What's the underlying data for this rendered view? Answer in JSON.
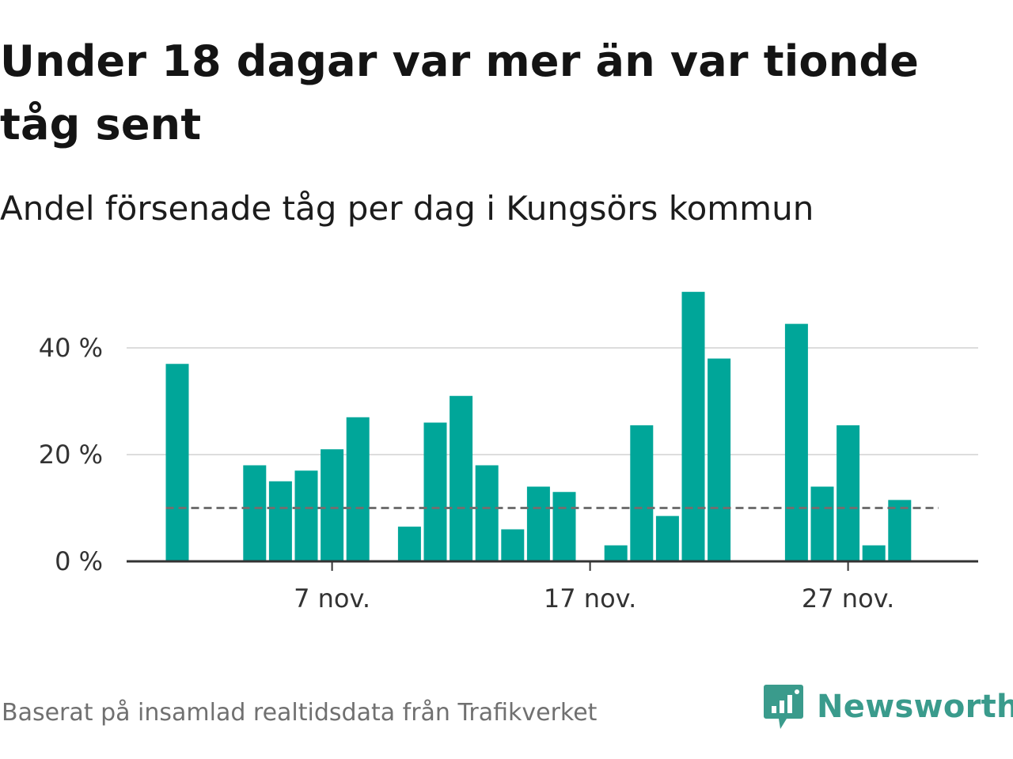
{
  "title": "Under 18 dagar var mer än var tionde tåg sent",
  "subtitle": "Andel försenade tåg per dag i Kungsörs kommun",
  "footer": "Baserat på insamlad realtidsdata från Trafikverket",
  "brand": {
    "name": "Newsworthy",
    "icon": "newsworthy-logo-icon",
    "color": "#3a9b8c"
  },
  "colors": {
    "bar": "#00a699",
    "reference_line": "#707070",
    "grid": "#dddddd",
    "axis": "#333333"
  },
  "chart_data": {
    "type": "bar",
    "x_unit": "day of November",
    "x": [
      1,
      2,
      3,
      4,
      5,
      6,
      7,
      8,
      9,
      10,
      11,
      12,
      13,
      14,
      15,
      16,
      17,
      18,
      19,
      20,
      21,
      22,
      23,
      24,
      25,
      26,
      27,
      28,
      29,
      30
    ],
    "values": [
      37,
      null,
      null,
      18,
      15,
      17,
      21,
      27,
      null,
      6.5,
      26,
      31,
      18,
      6,
      14,
      13,
      0,
      3,
      25.5,
      8.5,
      50.5,
      38,
      null,
      null,
      44.5,
      14,
      25.5,
      3,
      11.5,
      null
    ],
    "x_ticks": [
      {
        "x": 7,
        "label": "7 nov."
      },
      {
        "x": 17,
        "label": "17 nov."
      },
      {
        "x": 27,
        "label": "27 nov."
      }
    ],
    "y_ticks": [
      {
        "value": 0,
        "label": "0 %"
      },
      {
        "value": 20,
        "label": "20 %"
      },
      {
        "value": 40,
        "label": "40 %"
      }
    ],
    "reference_line": {
      "value": 10,
      "style": "dashed"
    },
    "ylim": [
      0,
      52
    ],
    "grid": true
  }
}
